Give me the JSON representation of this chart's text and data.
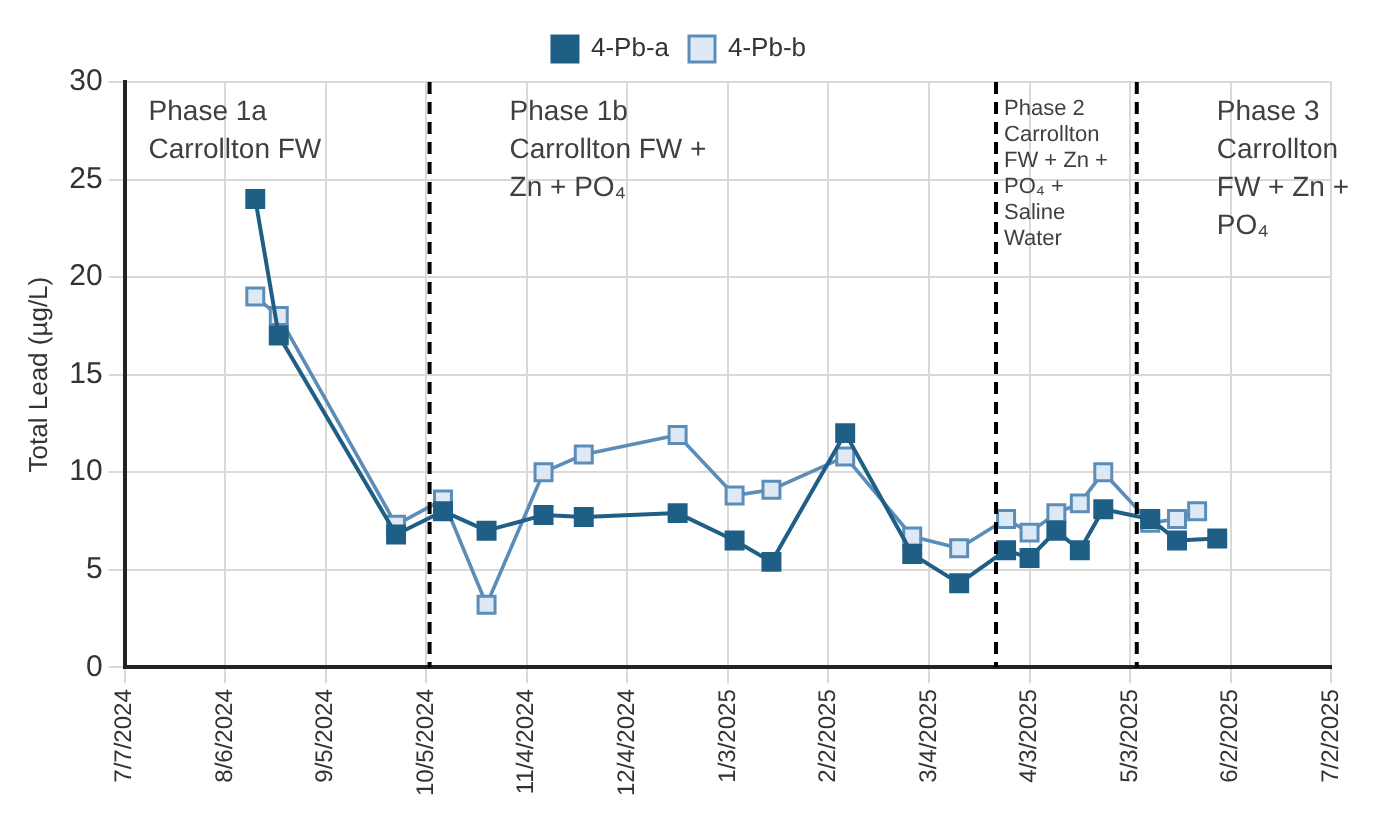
{
  "chart_data": {
    "type": "line",
    "ylabel": "Total Lead (µg/L)",
    "xlim": [
      "2024-07-07",
      "2025-07-02"
    ],
    "xticks": [
      {
        "value": "2024-07-07",
        "label": "7/7/2024"
      },
      {
        "value": "2024-08-06",
        "label": "8/6/2024"
      },
      {
        "value": "2024-09-05",
        "label": "9/5/2024"
      },
      {
        "value": "2024-10-05",
        "label": "10/5/2024"
      },
      {
        "value": "2024-11-04",
        "label": "11/4/2024"
      },
      {
        "value": "2024-12-04",
        "label": "12/4/2024"
      },
      {
        "value": "2025-01-03",
        "label": "1/3/2025"
      },
      {
        "value": "2025-02-02",
        "label": "2/2/2025"
      },
      {
        "value": "2025-03-04",
        "label": "3/4/2025"
      },
      {
        "value": "2025-04-03",
        "label": "4/3/2025"
      },
      {
        "value": "2025-05-03",
        "label": "5/3/2025"
      },
      {
        "value": "2025-06-02",
        "label": "6/2/2025"
      },
      {
        "value": "2025-07-02",
        "label": "7/2/2025"
      }
    ],
    "ylim": [
      0,
      30
    ],
    "yticks": [
      0,
      5,
      10,
      15,
      20,
      25,
      30
    ],
    "grid": true,
    "legend": "top",
    "marker": "square",
    "line_style": "solid",
    "series": [
      {
        "name": "4-Pb-a",
        "color": "#1f5f86",
        "x": [
          "2024-08-15",
          "2024-08-22",
          "2024-09-26",
          "2024-10-10",
          "2024-10-23",
          "2024-11-09",
          "2024-11-21",
          "2024-12-19",
          "2025-01-05",
          "2025-01-16",
          "2025-02-07",
          "2025-02-27",
          "2025-03-13",
          "2025-03-27",
          "2025-04-03",
          "2025-04-11",
          "2025-04-18",
          "2025-04-25",
          "2025-05-09",
          "2025-05-17",
          "2025-05-29"
        ],
        "values": [
          24,
          17,
          6.8,
          8,
          7,
          7.8,
          7.7,
          7.9,
          6.5,
          5.4,
          12,
          5.8,
          4.3,
          6,
          5.6,
          7,
          6,
          8.1,
          7.6,
          6.5,
          6.6
        ]
      },
      {
        "name": "4-Pb-b",
        "color": "#5b8db8",
        "x": [
          "2024-08-15",
          "2024-08-22",
          "2024-09-26",
          "2024-10-10",
          "2024-10-23",
          "2024-11-09",
          "2024-11-21",
          "2024-12-19",
          "2025-01-05",
          "2025-01-16",
          "2025-02-07",
          "2025-02-27",
          "2025-03-13",
          "2025-03-27",
          "2025-04-03",
          "2025-04-11",
          "2025-04-18",
          "2025-04-25",
          "2025-05-09",
          "2025-05-17",
          "2025-05-23"
        ],
        "values": [
          19,
          18,
          7.3,
          8.6,
          3.2,
          10,
          10.9,
          11.9,
          8.8,
          9.1,
          10.8,
          6.7,
          6.1,
          7.6,
          6.9,
          7.9,
          8.4,
          10,
          7.4,
          7.6,
          8
        ]
      }
    ],
    "ref_lines": [
      {
        "axis": "x",
        "value": "2024-10-06",
        "line_style": "dashed",
        "color": "#000000"
      },
      {
        "axis": "x",
        "value": "2025-03-24",
        "line_style": "dashed",
        "color": "#000000"
      },
      {
        "axis": "x",
        "value": "2025-05-05",
        "line_style": "dashed",
        "color": "#000000"
      }
    ],
    "annotations": [
      "Phase 1a\nCarrollton FW",
      "Phase 1b\nCarrollton FW +\nZn + PO₄",
      "Phase 2\nCarrollton\nFW + Zn +\nPO₄ +\nSaline\nWater",
      "Phase 3\nCarrollton\nFW + Zn +\nPO₄"
    ]
  }
}
